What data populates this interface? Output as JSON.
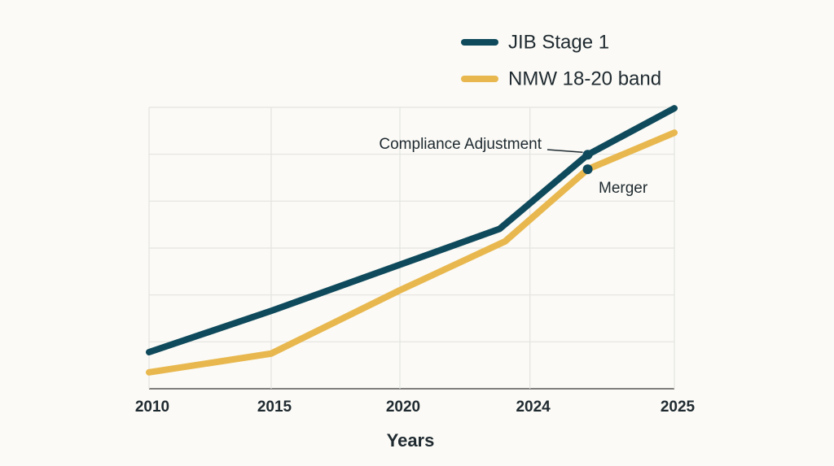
{
  "chart_data": {
    "type": "line",
    "x_label": "Years",
    "xlim": [
      0,
      4
    ],
    "xticks": [
      {
        "value": 0,
        "label": "2010"
      },
      {
        "value": 0.93,
        "label": "2015"
      },
      {
        "value": 1.91,
        "label": "2020"
      },
      {
        "value": 2.9,
        "label": "2024"
      },
      {
        "value": 4,
        "label": "2025"
      }
    ],
    "ylim": [
      0,
      6
    ],
    "yticks": [
      0,
      1,
      2,
      3,
      4,
      5,
      6
    ],
    "grid": true,
    "legend": "upper right",
    "series": [
      {
        "name": "JIB Stage 1",
        "color": "#0f4a5c",
        "x": [
          0,
          0.93,
          2.67,
          3.34,
          4
        ],
        "values": [
          0.78,
          1.66,
          3.41,
          4.99,
          5.98
        ]
      },
      {
        "name": "NMW 18-20 band",
        "color": "#e8b84f",
        "x": [
          0,
          0.93,
          1.91,
          2.71,
          3.34,
          4
        ],
        "values": [
          0.35,
          0.75,
          2.1,
          3.14,
          4.68,
          5.46
        ]
      }
    ],
    "annotations": [
      {
        "text": "Compliance Adjustment",
        "x": 3.34,
        "y": 4.99
      },
      {
        "text": "Merger",
        "x": 3.34,
        "y": 4.68
      }
    ]
  }
}
